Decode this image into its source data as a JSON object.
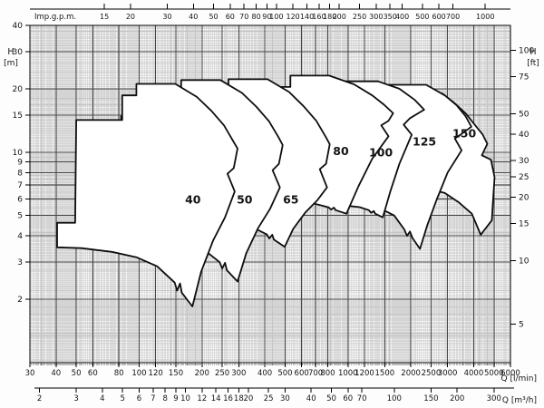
{
  "chart_data": {
    "type": "area",
    "title": "",
    "scale": "log-log",
    "plot": {
      "q_min": 30,
      "q_max": 6000,
      "h_min": 1.0,
      "h_max": 40
    },
    "colors": {
      "envelope_stroke": "#0d0d0d",
      "envelope_fill": "#ffffff",
      "grid_major": "#454545",
      "grid_minor": "#c5c5c5",
      "axis": "#1a1a1a",
      "text": "#141414",
      "background": "#fdfdfd"
    },
    "axes": {
      "top": {
        "label": "Imp.g.p.m.",
        "lmin_per_unit": 4.546,
        "ticks": [
          15,
          20,
          30,
          40,
          50,
          60,
          70,
          80,
          90,
          100,
          120,
          140,
          160,
          180,
          200,
          250,
          300,
          350,
          400,
          500,
          600,
          700,
          1000
        ]
      },
      "bottom": {
        "label": "Q [l/min]",
        "ticks": [
          30,
          40,
          50,
          60,
          80,
          100,
          120,
          150,
          200,
          250,
          300,
          400,
          500,
          600,
          700,
          800,
          1000,
          1200,
          1500,
          2000,
          2500,
          3000,
          4000,
          5000,
          6000
        ]
      },
      "bottom2": {
        "label": "Q [m³/h]",
        "lmin_per_unit": 16.6667,
        "ticks": [
          2,
          3,
          4,
          5,
          6,
          7,
          8,
          9,
          10,
          12,
          14,
          16,
          18,
          20,
          25,
          30,
          40,
          50,
          60,
          70,
          100,
          150,
          200,
          300
        ]
      },
      "left": {
        "label": "H",
        "unit": "[m]",
        "ticks": [
          2,
          3,
          4,
          5,
          6,
          7,
          8,
          9,
          10,
          15,
          20,
          30,
          40
        ]
      },
      "right": {
        "label": "H",
        "unit": "[ft]",
        "m_per_unit": 0.3048,
        "ticks": [
          5,
          10,
          15,
          20,
          25,
          30,
          40,
          50,
          75,
          100
        ]
      }
    },
    "grid": {
      "major_q": [
        30,
        40,
        50,
        60,
        80,
        100,
        120,
        150,
        200,
        250,
        300,
        400,
        500,
        600,
        700,
        800,
        1000,
        1200,
        1500,
        2000,
        2500,
        3000,
        4000,
        5000,
        6000
      ],
      "major_h": [
        2,
        3,
        4,
        5,
        6,
        7,
        8,
        9,
        10,
        15,
        20,
        30,
        40
      ]
    },
    "envelopes": [
      {
        "name": "150",
        "label": "150",
        "label_q": 3607,
        "label_h": 12.2,
        "points": [
          [
            1400,
            12.9
          ],
          [
            1400,
            19.0
          ],
          [
            2823,
            19.0
          ],
          [
            3213,
            17.2
          ],
          [
            3659,
            15.3
          ],
          [
            4044,
            13.5
          ],
          [
            4424,
            12.1
          ],
          [
            4651,
            10.95
          ],
          [
            4380,
            9.66
          ],
          [
            4840,
            9.2
          ],
          [
            5038,
            7.6
          ],
          [
            4938,
            5.64
          ],
          [
            4889,
            4.75
          ],
          [
            4322,
            4.05
          ],
          [
            3921,
            5.1
          ],
          [
            3373,
            5.8
          ],
          [
            2905,
            6.4
          ],
          [
            2400,
            6.7
          ],
          [
            2000,
            6.9
          ],
          [
            1600,
            7.0
          ],
          [
            1400,
            7.0
          ]
        ]
      },
      {
        "name": "125",
        "label": "125",
        "label_q": 2323,
        "label_h": 11.2,
        "points": [
          [
            794,
            14.1
          ],
          [
            1318,
            14.1
          ],
          [
            1318,
            18.4
          ],
          [
            1540,
            18.4
          ],
          [
            1540,
            20.9
          ],
          [
            2367,
            20.9
          ],
          [
            2909,
            18.6
          ],
          [
            3313,
            16.7
          ],
          [
            3660,
            14.8
          ],
          [
            3900,
            13.2
          ],
          [
            3500,
            12.2
          ],
          [
            3250,
            11.6
          ],
          [
            3500,
            10.2
          ],
          [
            3000,
            8.0
          ],
          [
            2650,
            5.9
          ],
          [
            2400,
            4.5
          ],
          [
            2212,
            3.47
          ],
          [
            2040,
            3.9
          ],
          [
            1980,
            4.2
          ],
          [
            1920,
            4.0
          ],
          [
            1860,
            4.3
          ],
          [
            1665,
            5.0
          ],
          [
            1430,
            5.4
          ],
          [
            1170,
            5.7
          ],
          [
            960,
            5.8
          ],
          [
            785,
            5.85
          ],
          [
            643,
            5.9
          ],
          [
            643,
            7.0
          ],
          [
            794,
            7.0
          ]
        ]
      },
      {
        "name": "100",
        "label": "100",
        "label_q": 1438,
        "label_h": 9.95,
        "points": [
          [
            467,
            14.7
          ],
          [
            775,
            14.7
          ],
          [
            775,
            19.2
          ],
          [
            906,
            19.2
          ],
          [
            906,
            21.7
          ],
          [
            1392,
            21.7
          ],
          [
            1763,
            20.0
          ],
          [
            2090,
            17.7
          ],
          [
            2317,
            15.9
          ],
          [
            1984,
            14.5
          ],
          [
            1848,
            13.5
          ],
          [
            2021,
            12.1
          ],
          [
            1763,
            8.8
          ],
          [
            1596,
            6.5
          ],
          [
            1468,
            4.9
          ],
          [
            1350,
            5.1
          ],
          [
            1330,
            5.25
          ],
          [
            1290,
            5.15
          ],
          [
            1260,
            5.3
          ],
          [
            1139,
            5.48
          ],
          [
            906,
            5.62
          ],
          [
            691,
            5.7
          ],
          [
            495,
            5.75
          ],
          [
            378,
            5.76
          ],
          [
            378,
            6.18
          ],
          [
            461,
            6.18
          ]
        ]
      },
      {
        "name": "80",
        "label": "80",
        "label_q": 925,
        "label_h": 10.1,
        "points": [
          [
            273,
            15.5
          ],
          [
            453,
            15.5
          ],
          [
            453,
            20.4
          ],
          [
            530,
            20.4
          ],
          [
            530,
            23.1
          ],
          [
            813,
            23.1
          ],
          [
            1070,
            21.0
          ],
          [
            1307,
            18.6
          ],
          [
            1489,
            16.8
          ],
          [
            1645,
            15.3
          ],
          [
            1564,
            14.1
          ],
          [
            1443,
            13.4
          ],
          [
            1564,
            11.9
          ],
          [
            1307,
            9.3
          ],
          [
            1124,
            6.9
          ],
          [
            983,
            5.1
          ],
          [
            874,
            5.3
          ],
          [
            857,
            5.45
          ],
          [
            830,
            5.34
          ],
          [
            808,
            5.47
          ],
          [
            666,
            5.74
          ],
          [
            530,
            5.89
          ],
          [
            404,
            5.98
          ],
          [
            289,
            6.04
          ],
          [
            221,
            6.06
          ],
          [
            221,
            6.51
          ],
          [
            270,
            6.51
          ]
        ]
      },
      {
        "name": "65",
        "label": "65",
        "label_q": 533,
        "label_h": 5.94,
        "points": [
          [
            138,
            14.9
          ],
          [
            230,
            14.9
          ],
          [
            230,
            19.6
          ],
          [
            268,
            19.6
          ],
          [
            268,
            22.2
          ],
          [
            412,
            22.2
          ],
          [
            523,
            19.3
          ],
          [
            614,
            16.5
          ],
          [
            705,
            14.1
          ],
          [
            780,
            11.9
          ],
          [
            818,
            10.9
          ],
          [
            785,
            8.8
          ],
          [
            733,
            8.3
          ],
          [
            794,
            6.8
          ],
          [
            713,
            5.9
          ],
          [
            625,
            5.17
          ],
          [
            547,
            4.32
          ],
          [
            498,
            3.55
          ],
          [
            442,
            3.84
          ],
          [
            434,
            4.05
          ],
          [
            420,
            3.89
          ],
          [
            409,
            4.07
          ],
          [
            337,
            4.47
          ],
          [
            268,
            4.71
          ],
          [
            205,
            4.85
          ],
          [
            147,
            4.96
          ],
          [
            112,
            4.97
          ],
          [
            112,
            5.73
          ],
          [
            137,
            5.73
          ]
        ]
      },
      {
        "name": "50",
        "label": "50",
        "label_q": 320,
        "label_h": 5.94,
        "points": [
          [
            82,
            14.8
          ],
          [
            136,
            14.8
          ],
          [
            136,
            19.4
          ],
          [
            159,
            19.4
          ],
          [
            159,
            22.0
          ],
          [
            245,
            22.0
          ],
          [
            311,
            19.1
          ],
          [
            365,
            16.4
          ],
          [
            419,
            14.0
          ],
          [
            464,
            11.8
          ],
          [
            487,
            10.8
          ],
          [
            467,
            8.8
          ],
          [
            436,
            8.2
          ],
          [
            472,
            6.8
          ],
          [
            424,
            5.38
          ],
          [
            372,
            4.37
          ],
          [
            326,
            3.31
          ],
          [
            296,
            2.43
          ],
          [
            263,
            2.75
          ],
          [
            258,
            2.98
          ],
          [
            250,
            2.8
          ],
          [
            243,
            3.0
          ],
          [
            201,
            3.48
          ],
          [
            159,
            3.77
          ],
          [
            122,
            3.96
          ],
          [
            87,
            4.09
          ],
          [
            67,
            4.12
          ],
          [
            67,
            5.13
          ],
          [
            81,
            5.13
          ]
        ]
      },
      {
        "name": "40",
        "label": "40",
        "label_q": 181,
        "label_h": 5.94,
        "points": [
          [
            50,
            14.2
          ],
          [
            83,
            14.2
          ],
          [
            83,
            18.6
          ],
          [
            97,
            18.6
          ],
          [
            97,
            21.1
          ],
          [
            149,
            21.1
          ],
          [
            189,
            18.3
          ],
          [
            222,
            15.7
          ],
          [
            255,
            13.4
          ],
          [
            282,
            11.3
          ],
          [
            296,
            10.4
          ],
          [
            284,
            8.4
          ],
          [
            265,
            7.9
          ],
          [
            287,
            6.5
          ],
          [
            258,
            4.9
          ],
          [
            226,
            3.8
          ],
          [
            198,
            2.7
          ],
          [
            180,
            1.85
          ],
          [
            160,
            2.15
          ],
          [
            157,
            2.38
          ],
          [
            152,
            2.2
          ],
          [
            148,
            2.4
          ],
          [
            122,
            2.87
          ],
          [
            97,
            3.17
          ],
          [
            74,
            3.36
          ],
          [
            53,
            3.5
          ],
          [
            40.5,
            3.53
          ],
          [
            40.5,
            4.62
          ],
          [
            49.4,
            4.62
          ]
        ]
      }
    ]
  }
}
